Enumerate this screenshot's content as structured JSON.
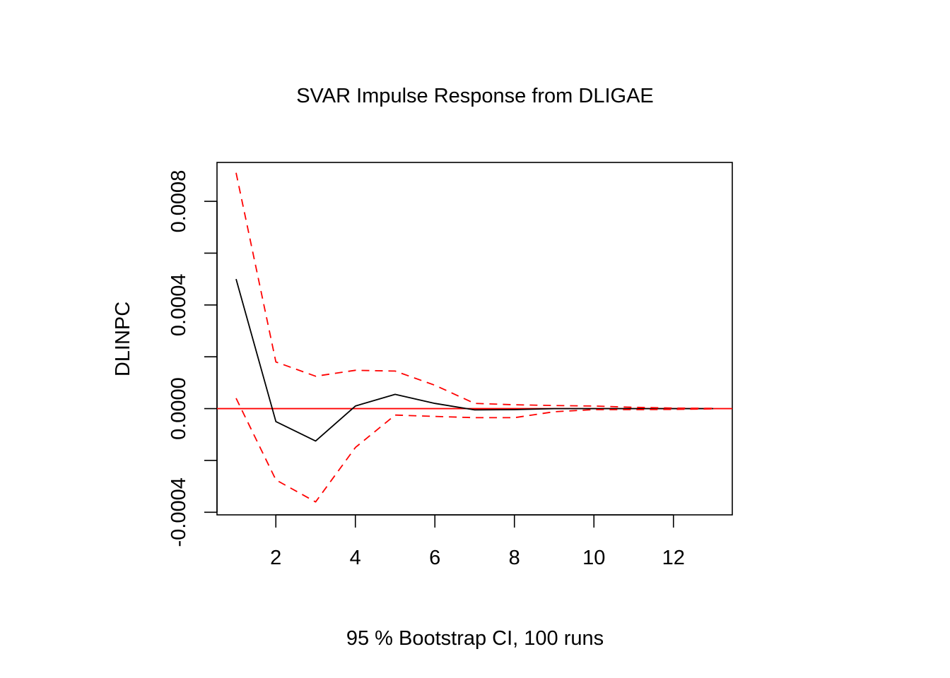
{
  "chart_data": {
    "type": "line",
    "title": "SVAR Impulse Response from DLIGAE",
    "xlabel": "95 % Bootstrap CI,  100 runs",
    "ylabel": "DLINPC",
    "x": [
      1,
      2,
      3,
      4,
      5,
      6,
      7,
      8,
      9,
      10,
      11,
      12,
      13
    ],
    "xlim": [
      0.52,
      13.48
    ],
    "ylim": [
      -0.00041,
      0.00095
    ],
    "x_ticks": [
      2,
      4,
      6,
      8,
      10,
      12
    ],
    "x_tick_labels": [
      "2",
      "4",
      "6",
      "8",
      "10",
      "12"
    ],
    "y_ticks": [
      -0.0004,
      -0.0002,
      0.0,
      0.0002,
      0.0004,
      0.0006,
      0.0008
    ],
    "y_tick_labels": [
      "-0.0004",
      "0.0000",
      "0.0004",
      "0.0008"
    ],
    "y_tick_label_values": [
      -0.0004,
      0.0,
      0.0004,
      0.0008
    ],
    "series": [
      {
        "values": [
          0.0005,
          -5e-05,
          -0.000125,
          1e-05,
          5.5e-05,
          2e-05,
          -5e-06,
          -4e-06,
          0.0,
          0.0,
          0.0,
          0.0,
          0.0
        ],
        "color": "#000000",
        "dash": "solid"
      },
      {
        "values": [
          0.00091,
          0.00018,
          0.000125,
          0.000148,
          0.000145,
          9e-05,
          2e-05,
          1.5e-05,
          1.2e-05,
          1e-05,
          5e-06,
          2e-06,
          1e-06
        ],
        "color": "#ff0000",
        "dash": "dashed"
      },
      {
        "values": [
          4e-05,
          -0.000275,
          -0.00036,
          -0.00015,
          -2.5e-05,
          -3e-05,
          -3.5e-05,
          -3.5e-05,
          -1.2e-05,
          -4e-06,
          -4e-06,
          -3e-06,
          -1e-06
        ],
        "color": "#ff0000",
        "dash": "dashed"
      }
    ],
    "reference_line": {
      "y": 0.0,
      "color": "#ff0000"
    },
    "grid": false,
    "legend": "none"
  }
}
